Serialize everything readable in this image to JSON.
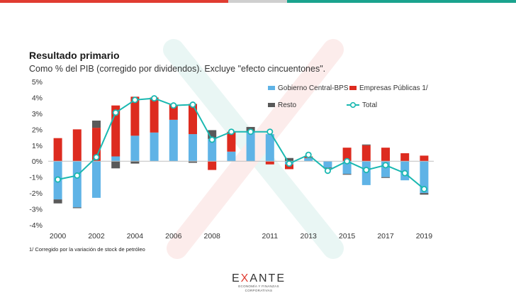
{
  "header": {
    "title": "Resultado primario",
    "subtitle": "Como % del PIB (corregido por dividendos). Excluye \"efecto cincuentones\"."
  },
  "colors": {
    "top_bar_red": "#e03c31",
    "top_bar_grey": "#cfcfcf",
    "top_bar_teal": "#1aa38e",
    "gobierno": "#5fb3e6",
    "empresas": "#dd2b1f",
    "resto": "#595959",
    "total": "#1ab8b1"
  },
  "chart_data": {
    "type": "bar",
    "stacked": true,
    "title": "",
    "xlabel": "",
    "ylabel": "",
    "ylim": [
      -4,
      5
    ],
    "y_ticks": [
      "5%",
      "4%",
      "3%",
      "2%",
      "1%",
      "0%",
      "-1%",
      "-2%",
      "-3%",
      "-4%"
    ],
    "x_tick_labels": [
      "2000",
      "2002",
      "2004",
      "2006",
      "2008",
      "2011",
      "2013",
      "2015",
      "2017",
      "2019"
    ],
    "categories": [
      "2000",
      "2001",
      "2002",
      "2003",
      "2004",
      "2005",
      "2006",
      "2007",
      "2008",
      "2009",
      "2010",
      "2011",
      "2012",
      "2013",
      "2014",
      "2015",
      "2016",
      "2017",
      "2018",
      "2019"
    ],
    "grid": false,
    "legend_position": "top-right",
    "series": [
      {
        "name": "Gobierno Central-BPS",
        "kind": "bar",
        "values": [
          -2.4,
          -2.9,
          -2.3,
          0.3,
          1.6,
          1.8,
          2.6,
          1.7,
          1.4,
          0.6,
          1.9,
          1.7,
          -0.2,
          0.2,
          -0.4,
          -0.8,
          -1.5,
          -1.0,
          -1.2,
          -2.0
        ]
      },
      {
        "name": "Empresas Públicas 1/",
        "kind": "bar",
        "values": [
          1.45,
          2.0,
          2.1,
          3.2,
          2.45,
          2.2,
          0.95,
          1.9,
          -0.55,
          1.25,
          0.0,
          -0.2,
          -0.3,
          0.1,
          0.0,
          0.85,
          1.0,
          0.85,
          0.5,
          0.35
        ]
      },
      {
        "name": "Resto",
        "kind": "bar",
        "values": [
          -0.25,
          -0.05,
          0.45,
          -0.45,
          -0.15,
          0.0,
          0.0,
          -0.1,
          0.55,
          0.0,
          0.25,
          0.0,
          0.2,
          0.0,
          -0.05,
          -0.05,
          0.05,
          -0.05,
          0.0,
          -0.1
        ]
      },
      {
        "name": "Total",
        "kind": "line",
        "values": [
          -1.15,
          -0.9,
          0.25,
          3.05,
          3.85,
          3.95,
          3.5,
          3.55,
          1.35,
          1.85,
          1.85,
          1.85,
          -0.15,
          0.4,
          -0.6,
          0.0,
          -0.55,
          -0.25,
          -0.75,
          -1.75
        ]
      }
    ]
  },
  "footnote": "1/  Corregido por la variación de stock de petróleo",
  "logo": {
    "word_start": "E",
    "word_accent": "X",
    "word_end": "ANTE",
    "tagline": "ECONOMÍA Y FINANZAS CORPORATIVAS"
  }
}
